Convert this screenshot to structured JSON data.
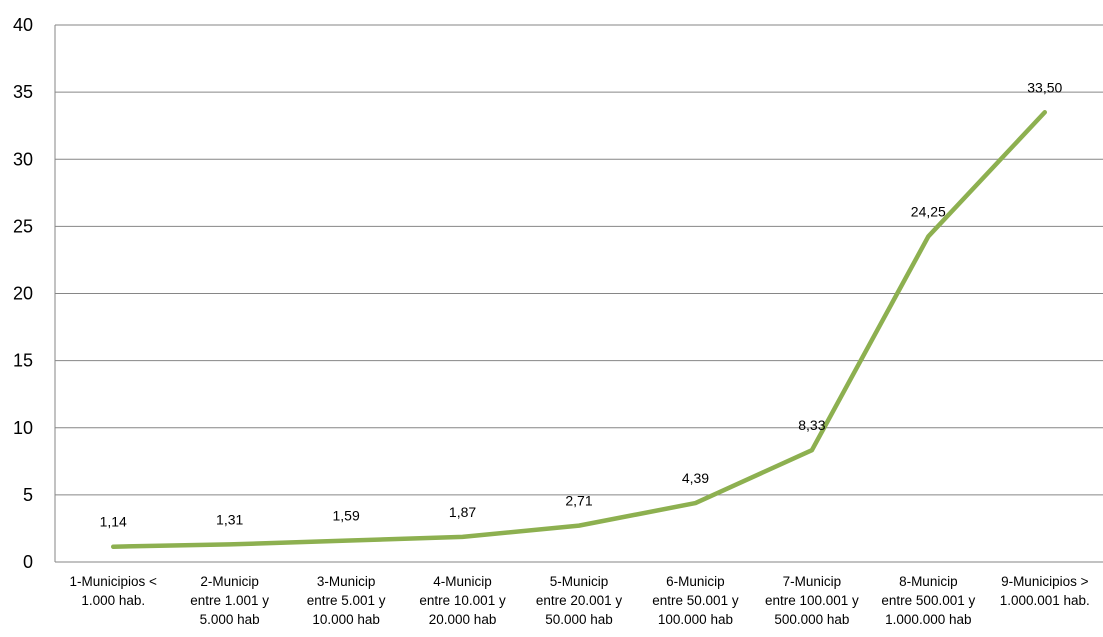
{
  "chart_data": {
    "type": "line",
    "title": "",
    "xlabel": "",
    "ylabel": "",
    "ylim": [
      0,
      40
    ],
    "yticks": [
      0,
      5,
      10,
      15,
      20,
      25,
      30,
      35,
      40
    ],
    "grid": true,
    "legend": "none",
    "categories": [
      [
        "1-Municipios <",
        "1.000 hab."
      ],
      [
        "2-Municip",
        "entre 1.001 y",
        "5.000 hab"
      ],
      [
        "3-Municip",
        "entre 5.001 y",
        "10.000 hab"
      ],
      [
        "4-Municip",
        "entre 10.001 y",
        "20.000 hab"
      ],
      [
        "5-Municip",
        "entre 20.001 y",
        "50.000 hab"
      ],
      [
        "6-Municip",
        "entre 50.001 y",
        "100.000 hab"
      ],
      [
        "7-Municip",
        "entre 100.001 y",
        "500.000 hab"
      ],
      [
        "8-Municip",
        "entre 500.001 y",
        "1.000.000 hab"
      ],
      [
        "9-Municipios >",
        "1.000.001 hab."
      ]
    ],
    "series": [
      {
        "values": [
          1.14,
          1.31,
          1.59,
          1.87,
          2.71,
          4.39,
          8.33,
          24.25,
          33.5
        ],
        "data_labels": [
          "1,14",
          "1,31",
          "1,59",
          "1,87",
          "2,71",
          "4,39",
          "8,33",
          "24,25",
          "33,50"
        ],
        "color": "#8db050"
      }
    ],
    "gridline_color": "#868686",
    "axis_color": "#868686"
  }
}
